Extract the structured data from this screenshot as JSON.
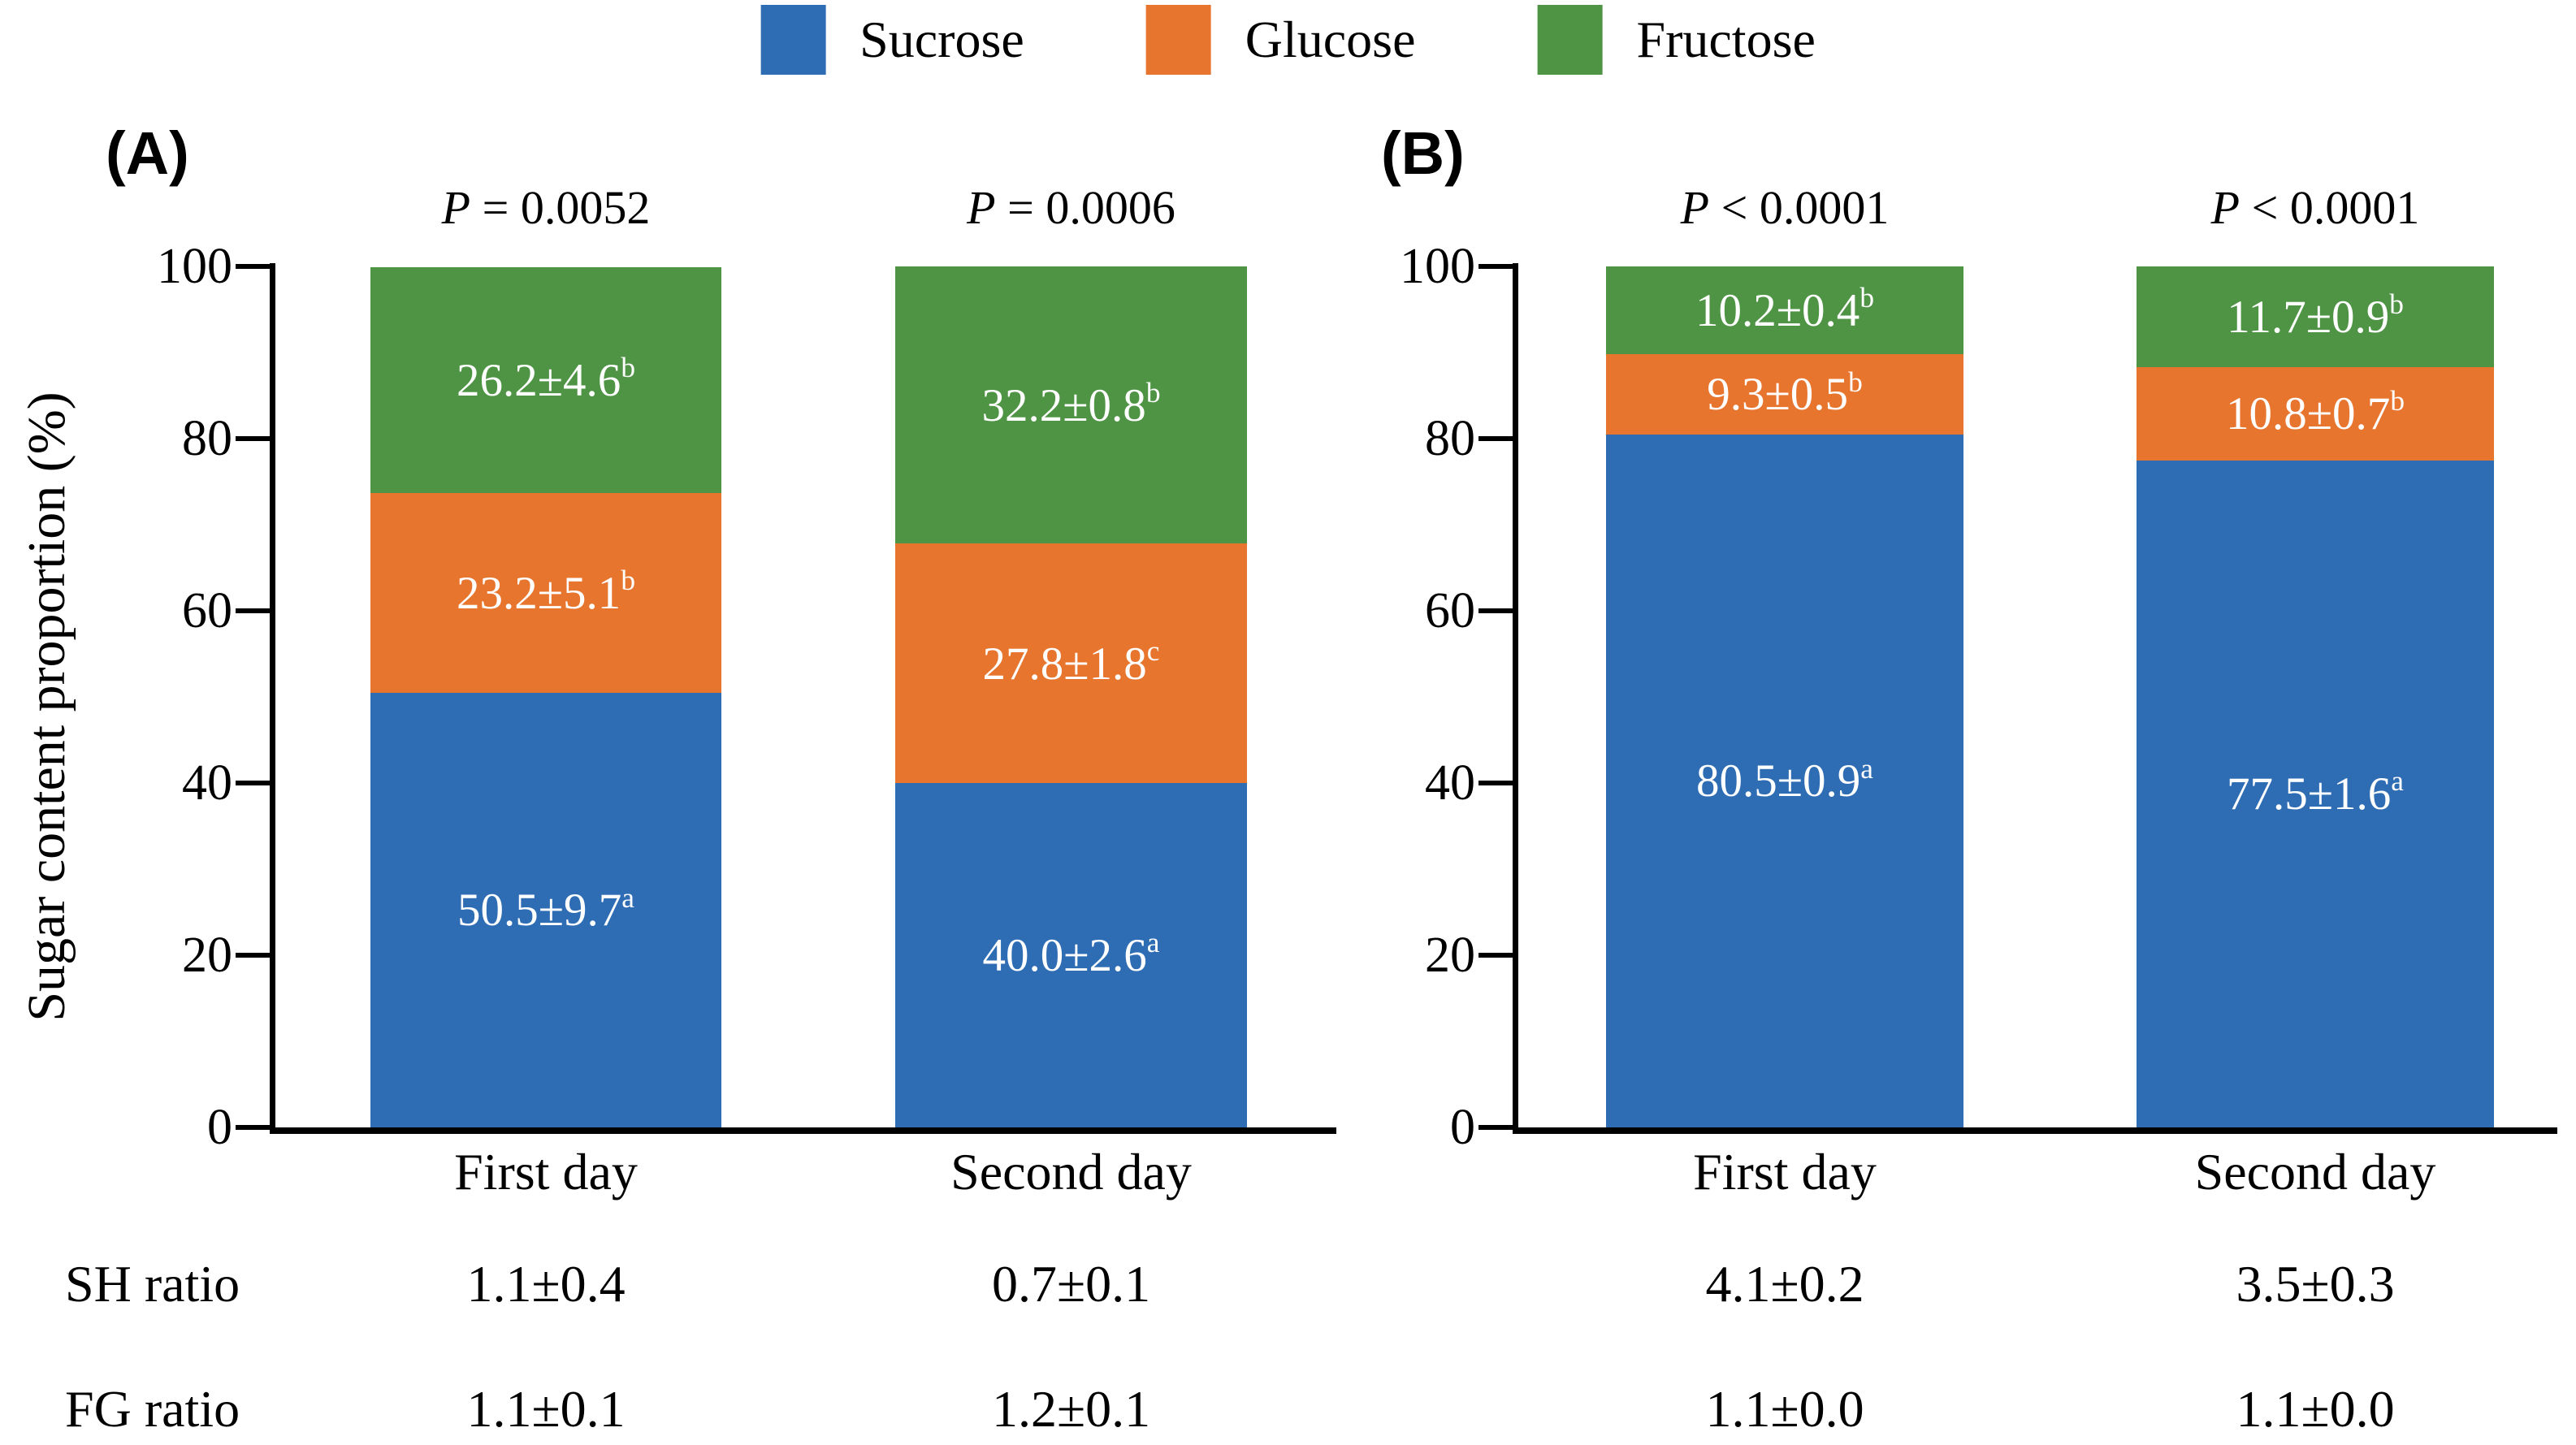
{
  "legend": {
    "items": [
      {
        "label": "Sucrose",
        "color": "#2E6DB4"
      },
      {
        "label": "Glucose",
        "color": "#E8752E"
      },
      {
        "label": "Fructose",
        "color": "#4E9444"
      }
    ]
  },
  "y_axis": {
    "title": "Sugar content proportion (%)"
  },
  "ratio_rows": [
    {
      "label": "SH ratio",
      "values": [
        "1.1±0.4",
        "0.7±0.1",
        "4.1±0.2",
        "3.5±0.3"
      ]
    },
    {
      "label": "FG ratio",
      "values": [
        "1.1±0.1",
        "1.2±0.1",
        "1.1±0.0",
        "1.1±0.0"
      ]
    }
  ],
  "chart_data": [
    {
      "type": "bar",
      "stacked": true,
      "panel_label": "(A)",
      "categories": [
        "First day",
        "Second day"
      ],
      "p_values": [
        "P = 0.0052",
        "P = 0.0006"
      ],
      "ylim": [
        0,
        100
      ],
      "yticks": [
        0,
        20,
        40,
        60,
        80,
        100
      ],
      "grid": false,
      "legend_position": "top",
      "series": [
        {
          "name": "Sucrose",
          "color": "#2E6DB4",
          "values": [
            50.5,
            40.0
          ],
          "labels": [
            "50.5±9.7",
            "40.0±2.6"
          ],
          "sups": [
            "a",
            "a"
          ]
        },
        {
          "name": "Glucose",
          "color": "#E8752E",
          "values": [
            23.2,
            27.8
          ],
          "labels": [
            "23.2±5.1",
            "27.8±1.8"
          ],
          "sups": [
            "b",
            "c"
          ]
        },
        {
          "name": "Fructose",
          "color": "#4E9444",
          "values": [
            26.2,
            32.2
          ],
          "labels": [
            "26.2±4.6",
            "32.2±0.8"
          ],
          "sups": [
            "b",
            "b"
          ]
        }
      ]
    },
    {
      "type": "bar",
      "stacked": true,
      "panel_label": "(B)",
      "categories": [
        "First day",
        "Second day"
      ],
      "p_values": [
        "P < 0.0001",
        "P < 0.0001"
      ],
      "ylim": [
        0,
        100
      ],
      "yticks": [
        0,
        20,
        40,
        60,
        80,
        100
      ],
      "grid": false,
      "legend_position": "top",
      "series": [
        {
          "name": "Sucrose",
          "color": "#2E6DB4",
          "values": [
            80.5,
            77.5
          ],
          "labels": [
            "80.5±0.9",
            "77.5±1.6"
          ],
          "sups": [
            "a",
            "a"
          ]
        },
        {
          "name": "Glucose",
          "color": "#E8752E",
          "values": [
            9.3,
            10.8
          ],
          "labels": [
            "9.3±0.5",
            "10.8±0.7"
          ],
          "sups": [
            "b",
            "b"
          ]
        },
        {
          "name": "Fructose",
          "color": "#4E9444",
          "values": [
            10.2,
            11.7
          ],
          "labels": [
            "10.2±0.4",
            "11.7±0.9"
          ],
          "sups": [
            "b",
            "b"
          ]
        }
      ]
    }
  ]
}
